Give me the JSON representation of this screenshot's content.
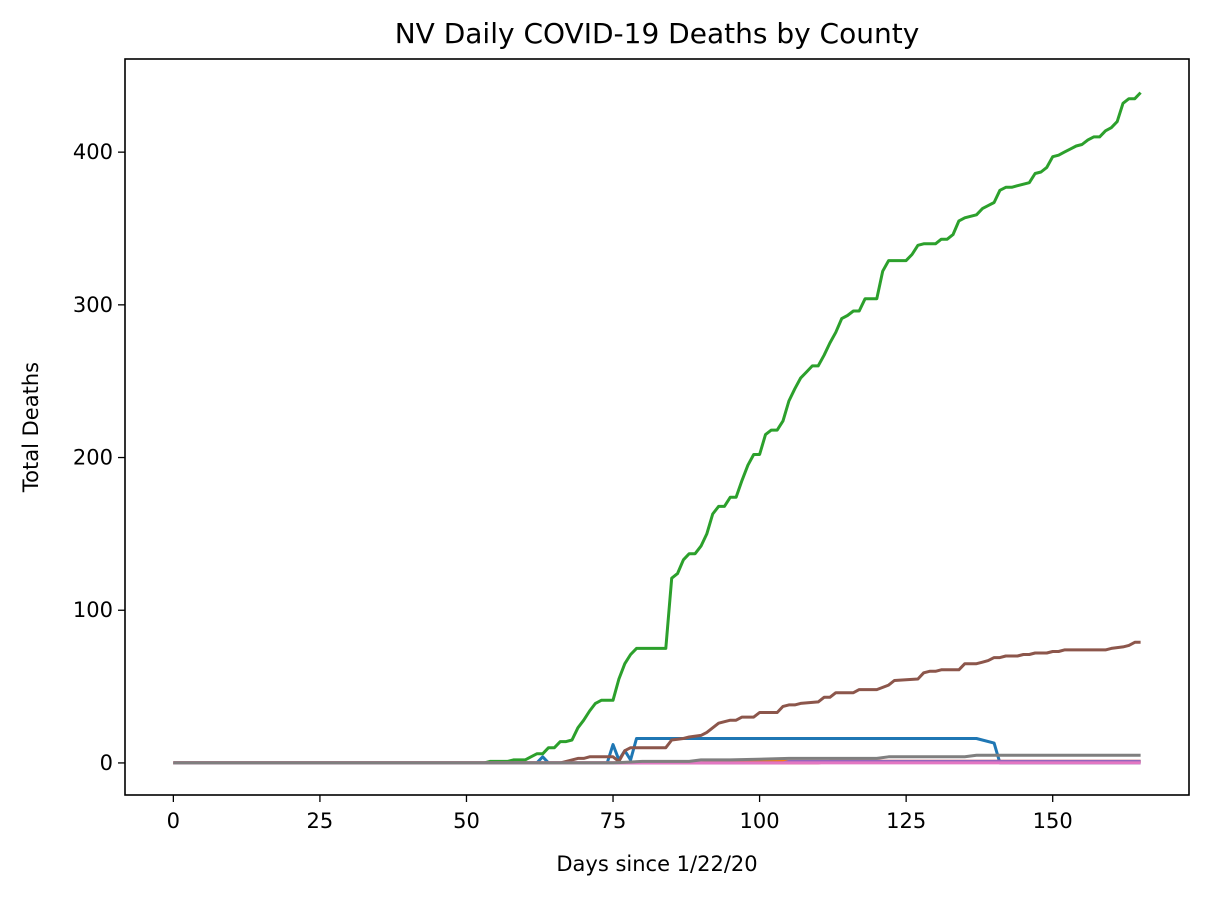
{
  "chart_data": {
    "type": "line",
    "title": "NV Daily COVID-19 Deaths by County",
    "xlabel": "Days since 1/22/20",
    "ylabel": "Total Deaths",
    "xlim": [
      -8.25,
      173.25
    ],
    "ylim": [
      -21,
      461
    ],
    "xticks": [
      0,
      25,
      50,
      75,
      100,
      125,
      150
    ],
    "yticks": [
      0,
      100,
      200,
      300,
      400
    ],
    "grid": false,
    "legend": "none",
    "series": [
      {
        "color": "#1f77b4",
        "points": [
          [
            0,
            0
          ],
          [
            62,
            0
          ],
          [
            63,
            4
          ],
          [
            64,
            0
          ],
          [
            74,
            0
          ],
          [
            75,
            12
          ],
          [
            76,
            2
          ],
          [
            77,
            8
          ],
          [
            78,
            2
          ],
          [
            79,
            16
          ],
          [
            137,
            16
          ],
          [
            140,
            13
          ],
          [
            141,
            0
          ],
          [
            165,
            0
          ]
        ]
      },
      {
        "color": "#ff7f0e",
        "points": [
          [
            0,
            0
          ],
          [
            90,
            0
          ],
          [
            92,
            1
          ],
          [
            165,
            1
          ]
        ]
      },
      {
        "color": "#2ca02c",
        "points": [
          [
            0,
            0
          ],
          [
            53,
            0
          ],
          [
            54,
            1
          ],
          [
            57,
            1
          ],
          [
            58,
            2
          ],
          [
            60,
            2
          ],
          [
            61,
            4
          ],
          [
            62,
            6
          ],
          [
            63,
            6
          ],
          [
            64,
            10
          ],
          [
            65,
            10
          ],
          [
            66,
            14
          ],
          [
            67,
            14
          ],
          [
            68,
            15
          ],
          [
            69,
            23
          ],
          [
            70,
            28
          ],
          [
            71,
            34
          ],
          [
            72,
            39
          ],
          [
            73,
            41
          ],
          [
            75,
            41
          ],
          [
            76,
            55
          ],
          [
            77,
            65
          ],
          [
            78,
            71
          ],
          [
            79,
            75
          ],
          [
            84,
            75
          ],
          [
            85,
            121
          ],
          [
            86,
            124
          ],
          [
            87,
            133
          ],
          [
            88,
            137
          ],
          [
            89,
            137
          ],
          [
            90,
            142
          ],
          [
            91,
            150
          ],
          [
            92,
            163
          ],
          [
            93,
            168
          ],
          [
            94,
            168
          ],
          [
            95,
            174
          ],
          [
            96,
            174
          ],
          [
            97,
            185
          ],
          [
            98,
            195
          ],
          [
            99,
            202
          ],
          [
            100,
            202
          ],
          [
            101,
            215
          ],
          [
            102,
            218
          ],
          [
            103,
            218
          ],
          [
            104,
            224
          ],
          [
            105,
            237
          ],
          [
            106,
            245
          ],
          [
            107,
            252
          ],
          [
            108,
            256
          ],
          [
            109,
            260
          ],
          [
            110,
            260
          ],
          [
            111,
            267
          ],
          [
            112,
            275
          ],
          [
            113,
            282
          ],
          [
            114,
            291
          ],
          [
            115,
            293
          ],
          [
            116,
            296
          ],
          [
            117,
            296
          ],
          [
            118,
            304
          ],
          [
            120,
            304
          ],
          [
            121,
            322
          ],
          [
            122,
            329
          ],
          [
            125,
            329
          ],
          [
            126,
            333
          ],
          [
            127,
            339
          ],
          [
            128,
            340
          ],
          [
            130,
            340
          ],
          [
            131,
            343
          ],
          [
            132,
            343
          ],
          [
            133,
            346
          ],
          [
            134,
            355
          ],
          [
            135,
            357
          ],
          [
            136,
            358
          ],
          [
            137,
            359
          ],
          [
            138,
            363
          ],
          [
            139,
            365
          ],
          [
            140,
            367
          ],
          [
            141,
            375
          ],
          [
            142,
            377
          ],
          [
            143,
            377
          ],
          [
            144,
            378
          ],
          [
            145,
            379
          ],
          [
            146,
            380
          ],
          [
            147,
            386
          ],
          [
            148,
            387
          ],
          [
            149,
            390
          ],
          [
            150,
            397
          ],
          [
            151,
            398
          ],
          [
            152,
            400
          ],
          [
            153,
            402
          ],
          [
            154,
            404
          ],
          [
            155,
            405
          ],
          [
            156,
            408
          ],
          [
            157,
            410
          ],
          [
            158,
            410
          ],
          [
            159,
            414
          ],
          [
            160,
            416
          ],
          [
            161,
            420
          ],
          [
            162,
            432
          ],
          [
            163,
            435
          ],
          [
            164,
            435
          ],
          [
            165,
            439
          ]
        ]
      },
      {
        "color": "#d62728",
        "points": [
          [
            0,
            0
          ],
          [
            110,
            0
          ],
          [
            112,
            1
          ],
          [
            165,
            1
          ]
        ]
      },
      {
        "color": "#9467bd",
        "points": [
          [
            0,
            0
          ],
          [
            104,
            0
          ],
          [
            105,
            1
          ],
          [
            165,
            1
          ]
        ]
      },
      {
        "color": "#8c564b",
        "points": [
          [
            0,
            0
          ],
          [
            66,
            0
          ],
          [
            68,
            2
          ],
          [
            69,
            3
          ],
          [
            70,
            3
          ],
          [
            71,
            4
          ],
          [
            75,
            4
          ],
          [
            76,
            1
          ],
          [
            77,
            8
          ],
          [
            78,
            10
          ],
          [
            84,
            10
          ],
          [
            85,
            15
          ],
          [
            87,
            16
          ],
          [
            88,
            17
          ],
          [
            90,
            18
          ],
          [
            91,
            20
          ],
          [
            92,
            23
          ],
          [
            93,
            26
          ],
          [
            94,
            27
          ],
          [
            95,
            28
          ],
          [
            96,
            28
          ],
          [
            97,
            30
          ],
          [
            99,
            30
          ],
          [
            100,
            33
          ],
          [
            102,
            33
          ],
          [
            103,
            33
          ],
          [
            104,
            37
          ],
          [
            105,
            38
          ],
          [
            106,
            38
          ],
          [
            107,
            39
          ],
          [
            110,
            40
          ],
          [
            111,
            43
          ],
          [
            112,
            43
          ],
          [
            113,
            46
          ],
          [
            116,
            46
          ],
          [
            117,
            48
          ],
          [
            120,
            48
          ],
          [
            122,
            51
          ],
          [
            123,
            54
          ],
          [
            127,
            55
          ],
          [
            128,
            59
          ],
          [
            129,
            60
          ],
          [
            130,
            60
          ],
          [
            131,
            61
          ],
          [
            134,
            61
          ],
          [
            135,
            65
          ],
          [
            137,
            65
          ],
          [
            138,
            66
          ],
          [
            139,
            67
          ],
          [
            140,
            69
          ],
          [
            141,
            69
          ],
          [
            142,
            70
          ],
          [
            144,
            70
          ],
          [
            145,
            71
          ],
          [
            146,
            71
          ],
          [
            147,
            72
          ],
          [
            149,
            72
          ],
          [
            150,
            73
          ],
          [
            151,
            73
          ],
          [
            152,
            74
          ],
          [
            159,
            74
          ],
          [
            160,
            75
          ],
          [
            162,
            76
          ],
          [
            163,
            77
          ],
          [
            164,
            79
          ],
          [
            165,
            79
          ]
        ]
      },
      {
        "color": "#e377c2",
        "points": [
          [
            0,
            0
          ],
          [
            165,
            0
          ]
        ]
      },
      {
        "color": "#7f7f7f",
        "points": [
          [
            0,
            0
          ],
          [
            75,
            0
          ],
          [
            80,
            1
          ],
          [
            88,
            1
          ],
          [
            90,
            2
          ],
          [
            95,
            2
          ],
          [
            105,
            3
          ],
          [
            120,
            3
          ],
          [
            122,
            4
          ],
          [
            135,
            4
          ],
          [
            137,
            5
          ],
          [
            165,
            5
          ]
        ]
      }
    ]
  }
}
